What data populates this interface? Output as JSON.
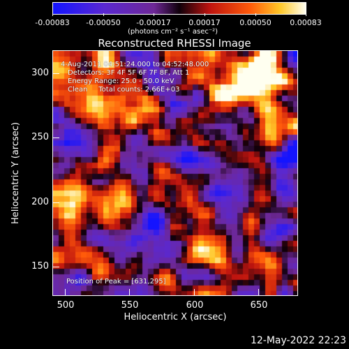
{
  "colorbar": {
    "labels": [
      "-0.00083",
      "-0.00050",
      "-0.00017",
      "0.00017",
      "0.00050",
      "0.00083"
    ],
    "units": "(photons cm⁻² s⁻¹ asec⁻²)"
  },
  "title": "Reconstructed RHESSI Image",
  "info": {
    "time": "4-Aug-2011 04:51:24.000 to 04:52:48.000",
    "detectors": "Detectors: 3F 4F 5F 6F 7F 8F, Att 1",
    "energy": "Energy Range: 25.0 - 50.0 keV",
    "method": "Clean     Total counts: 2.66E+03",
    "peak": "Position of Peak = [631,295]"
  },
  "axes": {
    "xlabel": "Heliocentric X (arcsec)",
    "ylabel": "Heliocentric Y (arcsec)",
    "xticks": [
      "500",
      "550",
      "600",
      "650"
    ],
    "yticks": [
      "300",
      "250",
      "200",
      "150"
    ]
  },
  "timestamp": "12-May-2022 22:23",
  "colors": {
    "background": "#000000",
    "frame": "#ffffff"
  }
}
